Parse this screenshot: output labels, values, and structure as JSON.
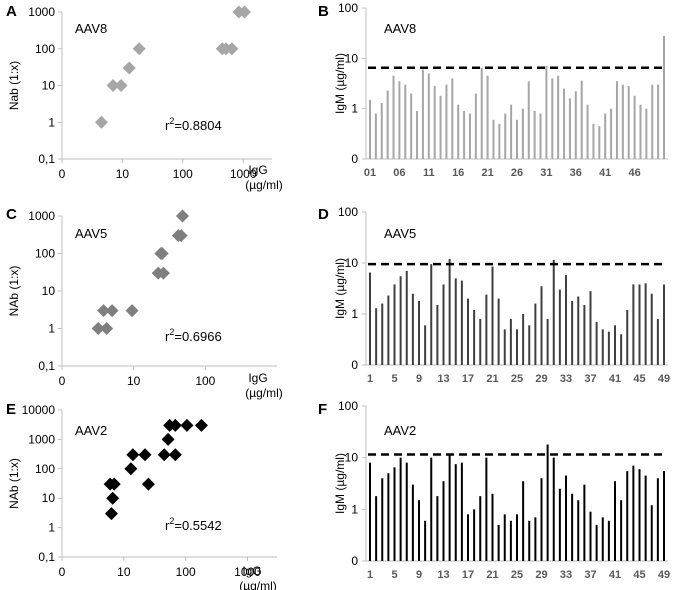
{
  "chart_data": [
    {
      "id": "A",
      "type": "scatter",
      "letter": "A",
      "title": "AAV8",
      "ylabel": "Nab (1:x)",
      "xlabel_line1": "IgG",
      "xlabel_line2": "(µg/ml)",
      "xscale": "log",
      "yscale": "log",
      "xlim": [
        1,
        3000
      ],
      "ylim": [
        0.1,
        1000
      ],
      "xticks": [
        "0",
        "10",
        "100",
        "1000"
      ],
      "yticks": [
        "0,1",
        "1",
        "10",
        "100",
        "1000"
      ],
      "r2_prefix": "r",
      "r2_sup": "2",
      "r2_value": "=0.8804",
      "color": "#a6a6a6",
      "points": [
        [
          4.5,
          1
        ],
        [
          7,
          10
        ],
        [
          9.5,
          10
        ],
        [
          13,
          30
        ],
        [
          19,
          100
        ],
        [
          450,
          100
        ],
        [
          520,
          100
        ],
        [
          650,
          100
        ],
        [
          850,
          1000
        ],
        [
          1050,
          1000
        ]
      ]
    },
    {
      "id": "B",
      "type": "bar",
      "letter": "B",
      "title": "AAV8",
      "ylabel": "IgM (µg/ml)",
      "yscale": "log",
      "ylim": [
        0,
        100
      ],
      "yticks": [
        "0",
        "1",
        "10",
        "100"
      ],
      "xticks": [
        "01",
        "06",
        "11",
        "16",
        "21",
        "26",
        "31",
        "36",
        "41",
        "46"
      ],
      "threshold": 6.5,
      "color": "#a6a6a6",
      "values": [
        1.5,
        0.8,
        1.3,
        2.3,
        4.5,
        3.5,
        3.0,
        2.0,
        0.9,
        6.0,
        5.0,
        2.8,
        1.8,
        3.0,
        4.0,
        1.2,
        0.9,
        0.8,
        2.0,
        6.5,
        4.5,
        0.6,
        0.5,
        0.8,
        1.2,
        0.6,
        1.0,
        3.5,
        0.9,
        0.8,
        7.0,
        4.0,
        4.5,
        2.5,
        1.6,
        2.2,
        3.6,
        1.2,
        0.5,
        0.45,
        0.8,
        1.0,
        3.5,
        3.0,
        2.8,
        1.8,
        1.2,
        1.0,
        3.0,
        3.0,
        28
      ]
    },
    {
      "id": "C",
      "type": "scatter",
      "letter": "C",
      "title": "AAV5",
      "ylabel": "NAb (1:x)",
      "xlabel_line1": "IgG",
      "xlabel_line2": "(µg/ml)",
      "xscale": "log",
      "yscale": "log",
      "xlim": [
        1,
        1000
      ],
      "ylim": [
        0.1,
        1000
      ],
      "xticks": [
        "0",
        "10",
        "100"
      ],
      "yticks": [
        "0,1",
        "1",
        "10",
        "100",
        "1000"
      ],
      "r2_prefix": "r",
      "r2_sup": "2",
      "r2_value": "=0.6966",
      "color": "#7f7f7f",
      "points": [
        [
          3.2,
          1
        ],
        [
          3.8,
          3
        ],
        [
          4.2,
          1
        ],
        [
          5.0,
          3
        ],
        [
          9.5,
          3
        ],
        [
          22,
          30
        ],
        [
          24,
          100
        ],
        [
          25,
          100
        ],
        [
          26,
          30
        ],
        [
          42,
          300
        ],
        [
          46,
          300
        ],
        [
          48,
          1000
        ]
      ]
    },
    {
      "id": "D",
      "type": "bar",
      "letter": "D",
      "title": "AAV5",
      "ylabel": "IgM (µg/ml)",
      "yscale": "log",
      "ylim": [
        0,
        100
      ],
      "yticks": [
        "0",
        "1",
        "10",
        "100"
      ],
      "xticks": [
        "1",
        "5",
        "9",
        "13",
        "17",
        "21",
        "25",
        "29",
        "33",
        "37",
        "41",
        "45",
        "49"
      ],
      "threshold": 9.5,
      "color": "#3f3f3f",
      "values": [
        6.5,
        1.3,
        1.6,
        2.3,
        3.8,
        5.5,
        7.0,
        2.5,
        1.8,
        0.6,
        9.5,
        1.5,
        3.8,
        12.0,
        5.0,
        4.5,
        2.0,
        1.2,
        0.8,
        2.4,
        8.5,
        2.0,
        0.5,
        0.8,
        0.5,
        1.0,
        0.6,
        1.6,
        3.5,
        0.8,
        11.5,
        3.0,
        5.8,
        1.8,
        2.2,
        1.5,
        2.8,
        0.7,
        0.5,
        0.45,
        0.6,
        0.4,
        1.2,
        3.8,
        3.8,
        4.0,
        2.5,
        0.8,
        3.8
      ]
    },
    {
      "id": "E",
      "type": "scatter",
      "letter": "E",
      "title": "AAV2",
      "ylabel": "NAb (1:x)",
      "xlabel_line1": "IgG",
      "xlabel_line2": "(µg/ml)",
      "xscale": "log",
      "yscale": "log",
      "xlim": [
        1,
        3000
      ],
      "ylim": [
        0.1,
        10000
      ],
      "xticks": [
        "0",
        "10",
        "100",
        "1000"
      ],
      "yticks": [
        "0,1",
        "1",
        "10",
        "100",
        "1000",
        "10000"
      ],
      "r2_prefix": "r",
      "r2_sup": "2",
      "r2_value": "=0.5542",
      "color": "#000000",
      "points": [
        [
          6,
          30
        ],
        [
          6.3,
          3
        ],
        [
          6.6,
          10
        ],
        [
          7,
          30
        ],
        [
          13,
          100
        ],
        [
          14,
          300
        ],
        [
          22,
          300
        ],
        [
          25,
          30
        ],
        [
          45,
          300
        ],
        [
          52,
          1000
        ],
        [
          55,
          3000
        ],
        [
          68,
          300
        ],
        [
          68,
          3000
        ],
        [
          105,
          3000
        ],
        [
          180,
          3000
        ]
      ]
    },
    {
      "id": "F",
      "type": "bar",
      "letter": "F",
      "title": "AAV2",
      "ylabel": "IgM (µg/ml)",
      "yscale": "log",
      "ylim": [
        0,
        100
      ],
      "yticks": [
        "0",
        "1",
        "10",
        "100"
      ],
      "xticks": [
        "1",
        "5",
        "9",
        "13",
        "17",
        "21",
        "25",
        "29",
        "33",
        "37",
        "41",
        "45",
        "49"
      ],
      "threshold": 11.5,
      "color": "#000000",
      "values": [
        8.0,
        1.8,
        4.0,
        5.0,
        6.5,
        10.0,
        8.0,
        3.0,
        1.5,
        0.6,
        10.0,
        1.8,
        3.5,
        11.0,
        7.5,
        8.0,
        0.8,
        1.0,
        1.8,
        10.0,
        2.0,
        0.5,
        0.8,
        0.6,
        0.8,
        3.5,
        0.6,
        0.7,
        4.0,
        18.0,
        10.0,
        2.5,
        4.5,
        2.0,
        1.5,
        3.0,
        0.9,
        0.5,
        0.7,
        0.6,
        3.5,
        1.5,
        5.5,
        7.0,
        6.0,
        4.5,
        1.2,
        4.0,
        5.5
      ]
    }
  ]
}
